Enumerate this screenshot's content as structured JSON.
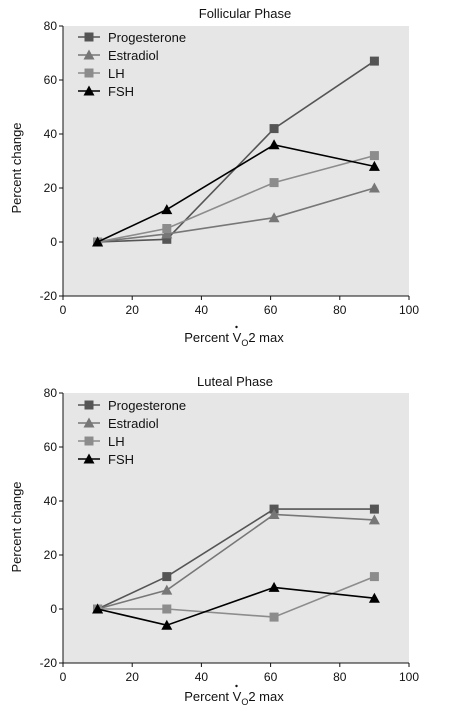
{
  "chart_data": [
    {
      "type": "line",
      "title": "Follicular Phase",
      "xlabel": "Percent VO2 max",
      "ylabel": "Percent change",
      "xlim": [
        0,
        100
      ],
      "ylim": [
        -20,
        80
      ],
      "xticks": [
        0,
        20,
        40,
        60,
        80,
        100
      ],
      "yticks": [
        -20,
        0,
        20,
        40,
        60,
        80
      ],
      "legend_position": "top-left",
      "series": [
        {
          "name": "Progesterone",
          "marker": "square",
          "color": "#555555",
          "x": [
            10,
            30,
            61,
            90
          ],
          "y": [
            0,
            1,
            42,
            67
          ]
        },
        {
          "name": "Estradiol",
          "marker": "triangle",
          "color": "#777777",
          "x": [
            10,
            30,
            61,
            90
          ],
          "y": [
            0,
            3,
            9,
            20
          ]
        },
        {
          "name": "LH",
          "marker": "square",
          "color": "#8c8c8c",
          "x": [
            10,
            30,
            61,
            90
          ],
          "y": [
            0,
            5,
            22,
            32
          ]
        },
        {
          "name": "FSH",
          "marker": "triangle",
          "color": "#000000",
          "x": [
            10,
            30,
            61,
            90
          ],
          "y": [
            0,
            12,
            36,
            28
          ]
        }
      ]
    },
    {
      "type": "line",
      "title": "Luteal Phase",
      "xlabel": "Percent VO2 max",
      "ylabel": "Percent change",
      "xlim": [
        0,
        100
      ],
      "ylim": [
        -20,
        80
      ],
      "xticks": [
        0,
        20,
        40,
        60,
        80,
        100
      ],
      "yticks": [
        -20,
        0,
        20,
        40,
        60,
        80
      ],
      "legend_position": "top-left",
      "series": [
        {
          "name": "Progesterone",
          "marker": "square",
          "color": "#555555",
          "x": [
            10,
            30,
            61,
            90
          ],
          "y": [
            0,
            12,
            37,
            37
          ]
        },
        {
          "name": "Estradiol",
          "marker": "triangle",
          "color": "#777777",
          "x": [
            10,
            30,
            61,
            90
          ],
          "y": [
            0,
            7,
            35,
            33
          ]
        },
        {
          "name": "LH",
          "marker": "square",
          "color": "#8c8c8c",
          "x": [
            10,
            30,
            61,
            90
          ],
          "y": [
            0,
            0,
            -3,
            12
          ]
        },
        {
          "name": "FSH",
          "marker": "triangle",
          "color": "#000000",
          "x": [
            10,
            30,
            61,
            90
          ],
          "y": [
            0,
            -6,
            8,
            4
          ]
        }
      ]
    }
  ]
}
